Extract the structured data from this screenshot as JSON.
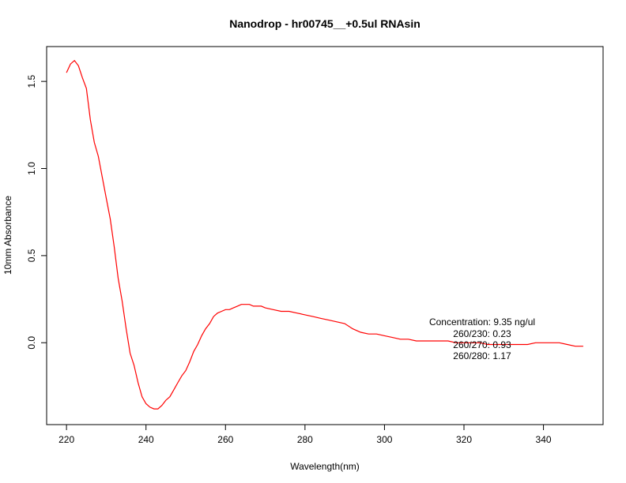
{
  "chart_data": {
    "type": "line",
    "title": "Nanodrop - hr00745__+0.5ul RNAsin",
    "xlabel": "Wavelength(nm)",
    "ylabel": "10mm Absorbance",
    "xlim": [
      215,
      355
    ],
    "ylim": [
      -0.47,
      1.7
    ],
    "x_ticks": [
      220,
      240,
      260,
      280,
      300,
      320,
      340
    ],
    "y_ticks": [
      0.0,
      0.5,
      1.0,
      1.5
    ],
    "y_tick_labels": [
      "0.0",
      "0.5",
      "1.0",
      "1.5"
    ],
    "grid": false,
    "series": [
      {
        "color": "#ff0000",
        "x": [
          220,
          221,
          222,
          223,
          224,
          225,
          226,
          227,
          228,
          229,
          230,
          231,
          232,
          233,
          234,
          235,
          236,
          237,
          238,
          239,
          240,
          241,
          242,
          243,
          244,
          245,
          246,
          247,
          248,
          249,
          250,
          251,
          252,
          253,
          254,
          255,
          256,
          257,
          258,
          259,
          260,
          261,
          262,
          263,
          264,
          265,
          266,
          267,
          268,
          269,
          270,
          272,
          274,
          276,
          278,
          280,
          282,
          284,
          286,
          288,
          290,
          292,
          294,
          296,
          298,
          300,
          302,
          304,
          306,
          308,
          310,
          312,
          314,
          316,
          318,
          320,
          322,
          324,
          326,
          328,
          330,
          332,
          334,
          336,
          338,
          340,
          342,
          344,
          346,
          348,
          350
        ],
        "y": [
          1.55,
          1.6,
          1.62,
          1.59,
          1.52,
          1.46,
          1.28,
          1.15,
          1.07,
          0.95,
          0.83,
          0.71,
          0.55,
          0.37,
          0.24,
          0.08,
          -0.06,
          -0.13,
          -0.23,
          -0.31,
          -0.35,
          -0.37,
          -0.38,
          -0.38,
          -0.36,
          -0.33,
          -0.31,
          -0.27,
          -0.23,
          -0.19,
          -0.16,
          -0.11,
          -0.05,
          -0.01,
          0.04,
          0.08,
          0.11,
          0.15,
          0.17,
          0.18,
          0.19,
          0.19,
          0.2,
          0.21,
          0.22,
          0.22,
          0.22,
          0.21,
          0.21,
          0.21,
          0.2,
          0.19,
          0.18,
          0.18,
          0.17,
          0.16,
          0.15,
          0.14,
          0.13,
          0.12,
          0.11,
          0.08,
          0.06,
          0.05,
          0.05,
          0.04,
          0.03,
          0.02,
          0.02,
          0.01,
          0.01,
          0.01,
          0.01,
          0.01,
          0.0,
          0.0,
          0.0,
          0.0,
          -0.01,
          -0.01,
          -0.01,
          -0.01,
          -0.01,
          -0.01,
          0.0,
          0.0,
          0.0,
          0.0,
          -0.01,
          -0.02,
          -0.02
        ]
      }
    ],
    "annotations": [
      "Concentration: 9.35 ng/ul",
      "260/230: 0.23",
      "260/270: 0.93",
      "260/280: 1.17"
    ]
  }
}
